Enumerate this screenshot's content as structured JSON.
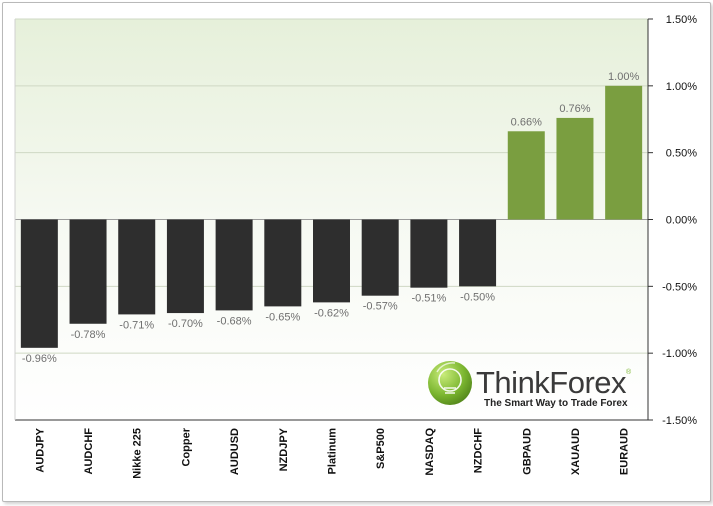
{
  "chart_data": {
    "type": "bar",
    "categories": [
      "AUDJPY",
      "AUDCHF",
      "Nikke 225",
      "Copper",
      "AUDUSD",
      "NZDJPY",
      "Platinum",
      "S&P500",
      "NASDAQ",
      "NZDCHF",
      "GBPAUD",
      "XAUAUD",
      "EURAUD"
    ],
    "values": [
      -0.96,
      -0.78,
      -0.71,
      -0.7,
      -0.68,
      -0.65,
      -0.62,
      -0.57,
      -0.51,
      -0.5,
      0.66,
      0.76,
      1.0
    ],
    "value_labels": [
      "-0.96%",
      "-0.78%",
      "-0.71%",
      "-0.70%",
      "-0.68%",
      "-0.65%",
      "-0.62%",
      "-0.57%",
      "-0.51%",
      "-0.50%",
      "0.66%",
      "0.76%",
      "1.00%"
    ],
    "ylim": [
      -1.5,
      1.5
    ],
    "yticks": [
      1.5,
      1.0,
      0.5,
      0.0,
      -0.5,
      -1.0,
      -1.5
    ],
    "ytick_labels": [
      "1.50%",
      "1.00%",
      "0.50%",
      "0.00%",
      "-0.50%",
      "-1.00%",
      "-1.50%"
    ],
    "y_axis_side": "right",
    "grid": true,
    "colors": {
      "positive": "#7a9e40",
      "negative": "#2e2e2e",
      "label": "#6f6f6f"
    }
  },
  "branding": {
    "name": "ThinkForex",
    "registered": "®",
    "tagline": "The Smart Way to Trade Forex"
  }
}
